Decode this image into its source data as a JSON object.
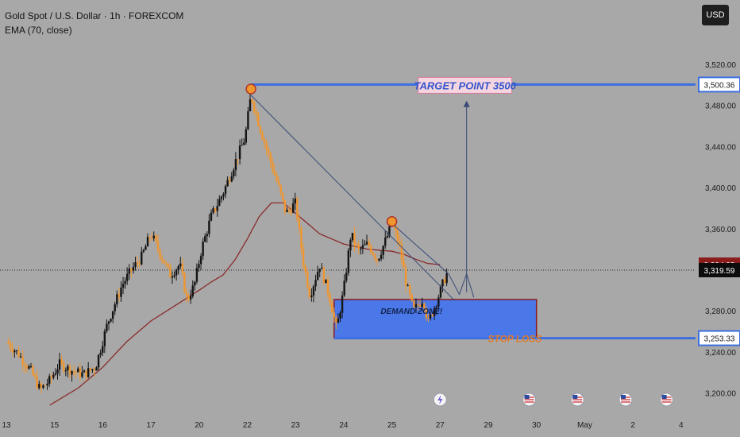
{
  "header": {
    "symbol": "Gold Spot / U.S. Dollar · 1h · FOREXCOM",
    "indicator": "EMA (70, close)",
    "currency": "USD"
  },
  "annotations": {
    "target": "TARGET POINT 3500",
    "demand": "DEMAND ZONE!",
    "stop": "STOP LOSS"
  },
  "colors": {
    "background": "#a8a8a8",
    "candle": "#f0962e",
    "candle_dark": "#141414",
    "ema": "#8a2b2b",
    "level_line": "#3d6fe0",
    "zone_fill": "#4a78e8",
    "zone_border": "#8b1c1c",
    "trendline": "#3a4a78",
    "target_text": "#3555cc",
    "stop_text": "#e07a2a",
    "last_price_bg": "#0c0c0c",
    "ema_price_bg": "#8b1c1c"
  },
  "chart_data": {
    "type": "candlestick",
    "title": "Gold Spot / U.S. Dollar · 1h · FOREXCOM",
    "indicator": "EMA (70, close)",
    "y_ticks": [
      3200,
      3240,
      3280,
      3320,
      3360,
      3400,
      3440,
      3480,
      3520
    ],
    "y_tick_labels": [
      "3,200.00",
      "3,240.00",
      "3,280.00",
      "3,320.00",
      "3,360.00",
      "3,400.00",
      "3,440.00",
      "3,480.00",
      "3,520.00"
    ],
    "ylim": [
      3188,
      3544
    ],
    "x_ticks": [
      {
        "label": "13",
        "t": 0
      },
      {
        "label": "15",
        "t": 2
      },
      {
        "label": "16",
        "t": 4
      },
      {
        "label": "17",
        "t": 6
      },
      {
        "label": "20",
        "t": 8
      },
      {
        "label": "22",
        "t": 10
      },
      {
        "label": "23",
        "t": 12
      },
      {
        "label": "24",
        "t": 14
      },
      {
        "label": "25",
        "t": 16
      },
      {
        "label": "27",
        "t": 18
      },
      {
        "label": "29",
        "t": 20
      },
      {
        "label": "30",
        "t": 22
      },
      {
        "label": "May",
        "t": 24
      },
      {
        "label": "2",
        "t": 26
      },
      {
        "label": "4",
        "t": 28
      }
    ],
    "xlim": [
      0,
      28.6
    ],
    "price_path": [
      [
        0,
        3250
      ],
      [
        0.5,
        3238
      ],
      [
        1.0,
        3222
      ],
      [
        1.4,
        3203
      ],
      [
        1.8,
        3212
      ],
      [
        2.2,
        3228
      ],
      [
        2.7,
        3222
      ],
      [
        3.2,
        3218
      ],
      [
        3.7,
        3225
      ],
      [
        4.2,
        3268
      ],
      [
        4.8,
        3305
      ],
      [
        5.2,
        3320
      ],
      [
        5.6,
        3332
      ],
      [
        6.0,
        3355
      ],
      [
        6.4,
        3335
      ],
      [
        6.8,
        3315
      ],
      [
        7.2,
        3325
      ],
      [
        7.5,
        3290
      ],
      [
        7.8,
        3305
      ],
      [
        8.1,
        3340
      ],
      [
        8.5,
        3372
      ],
      [
        9.0,
        3395
      ],
      [
        9.5,
        3425
      ],
      [
        9.9,
        3448
      ],
      [
        10.15,
        3490
      ],
      [
        10.5,
        3460
      ],
      [
        10.9,
        3430
      ],
      [
        11.3,
        3400
      ],
      [
        11.6,
        3375
      ],
      [
        12.0,
        3385
      ],
      [
        12.3,
        3330
      ],
      [
        12.6,
        3295
      ],
      [
        13.0,
        3325
      ],
      [
        13.4,
        3295
      ],
      [
        13.7,
        3262
      ],
      [
        14.0,
        3300
      ],
      [
        14.3,
        3355
      ],
      [
        14.6,
        3338
      ],
      [
        15.0,
        3345
      ],
      [
        15.4,
        3330
      ],
      [
        15.8,
        3352
      ],
      [
        16.0,
        3365
      ],
      [
        16.3,
        3345
      ],
      [
        16.6,
        3305
      ],
      [
        16.9,
        3280
      ],
      [
        17.3,
        3292
      ],
      [
        17.5,
        3268
      ],
      [
        17.9,
        3292
      ],
      [
        18.2,
        3312
      ],
      [
        18.35,
        3319.59
      ]
    ],
    "ema_path": [
      [
        1.8,
        3188
      ],
      [
        3.0,
        3205
      ],
      [
        4.0,
        3225
      ],
      [
        5.0,
        3250
      ],
      [
        6.0,
        3270
      ],
      [
        7.0,
        3285
      ],
      [
        8.0,
        3300
      ],
      [
        8.5,
        3308
      ],
      [
        9.0,
        3315
      ],
      [
        9.5,
        3330
      ],
      [
        10.0,
        3350
      ],
      [
        10.5,
        3372
      ],
      [
        11.0,
        3385
      ],
      [
        11.5,
        3385
      ],
      [
        12.0,
        3375
      ],
      [
        12.5,
        3365
      ],
      [
        13.0,
        3355
      ],
      [
        14.0,
        3345
      ],
      [
        15.0,
        3340
      ],
      [
        16.0,
        3338
      ],
      [
        16.5,
        3335
      ],
      [
        17.0,
        3330
      ],
      [
        17.5,
        3326
      ],
      [
        18.0,
        3324.95
      ]
    ],
    "lines": {
      "target": 3500.36,
      "stop_loss": 3253.33,
      "demand_zone": [
        3253.33,
        3291
      ],
      "demand_zone_t": [
        13.6,
        22.0
      ],
      "target_line_t": [
        10.15,
        28.6
      ],
      "stop_line_t": [
        13.6,
        28.6
      ]
    },
    "trendline": {
      "t0": 10.15,
      "p0": 3490,
      "t1": 18.6,
      "p1": 3290
    },
    "trendline_upper": {
      "t0": 16.0,
      "p0": 3365,
      "t1": 18.35,
      "p1": 3316
    },
    "arrow": {
      "t": 19.1,
      "p_from": 3298,
      "p_to": 3480
    },
    "highlight_points": [
      {
        "t": 10.15,
        "price": 3496
      },
      {
        "t": 16.0,
        "price": 3367
      }
    ],
    "price_labels": [
      {
        "value": 3500.36,
        "label": "3,500.36",
        "style": "blue"
      },
      {
        "value": 3324.95,
        "label": "3,324.95",
        "style": "ema"
      },
      {
        "value": 3319.59,
        "label": "3,319.59",
        "style": "black"
      },
      {
        "value": 3253.33,
        "label": "3,253.33",
        "style": "blue"
      }
    ],
    "event_icons": [
      {
        "t": 18.0,
        "kind": "lightning-icon"
      },
      {
        "t": 21.7,
        "kind": "us-flag-icon"
      },
      {
        "t": 23.7,
        "kind": "us-flag-icon"
      },
      {
        "t": 25.7,
        "kind": "us-flag-icon"
      },
      {
        "t": 27.4,
        "kind": "us-flag-icon"
      }
    ]
  }
}
